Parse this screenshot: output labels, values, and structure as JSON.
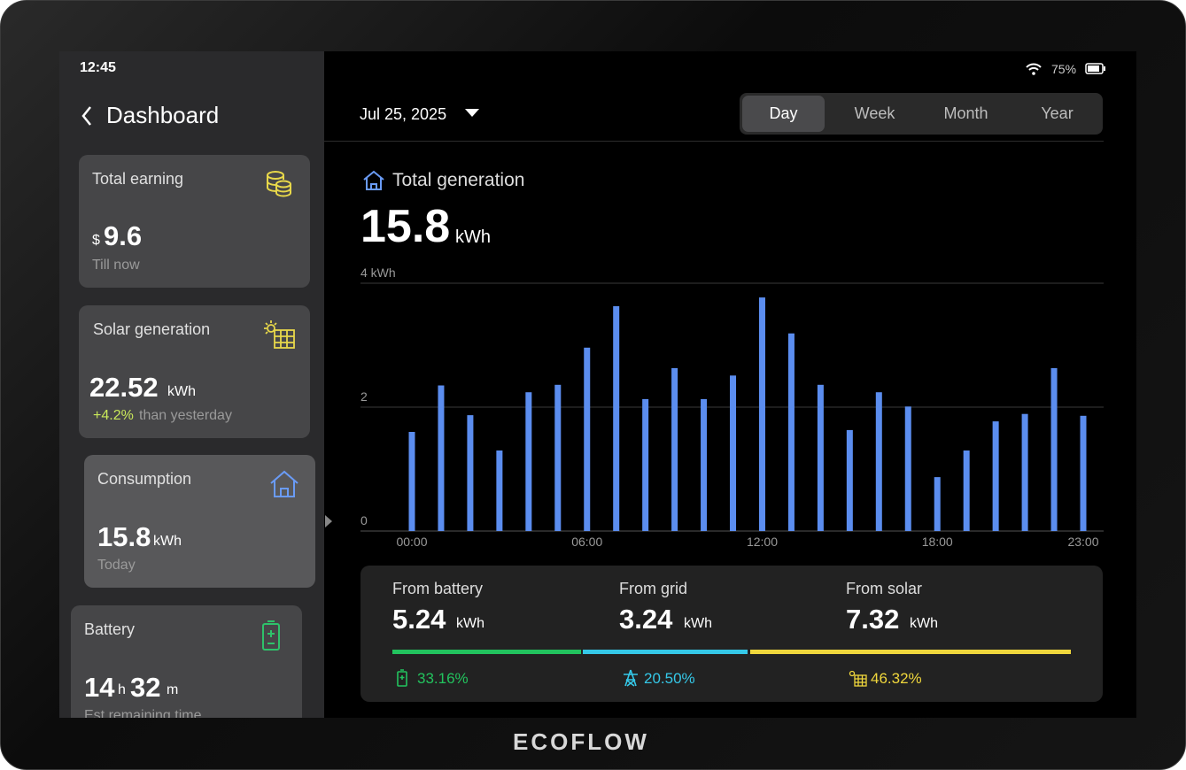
{
  "status": {
    "time": "12:45",
    "battery": "75%"
  },
  "sidebar": {
    "back": "Dashboard",
    "cards": [
      {
        "title": "Total earning",
        "unit": "$",
        "value": "9.6",
        "note": "Till now"
      },
      {
        "title": "Solar generation",
        "value": "22.52",
        "unit": "kWh",
        "change": "+4.2%",
        "note": "than yesterday"
      },
      {
        "title": "Consumption",
        "value": "15.8",
        "unit": "kWh",
        "note": "Today"
      },
      {
        "title": "Battery",
        "hours": "14",
        "hours_unit": "h",
        "minutes": "32",
        "minutes_unit": "m",
        "note": "Est remaining time"
      }
    ]
  },
  "main": {
    "date": "Jul 25, 2025",
    "tabs": [
      "Day",
      "Week",
      "Month",
      "Year"
    ],
    "selected_tab": "Day",
    "heading": "Total generation",
    "total": "15.8",
    "total_unit": "kWh",
    "breakdown": [
      {
        "label": "From battery",
        "value": "5.24",
        "unit": "kWh",
        "share": "33.16%"
      },
      {
        "label": "From grid",
        "value": "3.24",
        "unit": "kWh",
        "share": "20.50%"
      },
      {
        "label": "From solar",
        "value": "7.32",
        "unit": "kWh",
        "share": "46.32%"
      }
    ]
  },
  "brand": "ECOFLOW",
  "chart_data": {
    "type": "bar",
    "categories": [
      "00:00",
      null,
      null,
      null,
      null,
      null,
      "06:00",
      null,
      null,
      null,
      null,
      null,
      "12:00",
      null,
      null,
      null,
      null,
      null,
      "18:00",
      null,
      null,
      null,
      null,
      "23:00"
    ],
    "values": [
      1.6,
      2.35,
      1.87,
      1.3,
      2.24,
      2.36,
      2.96,
      3.63,
      2.13,
      2.63,
      2.13,
      2.51,
      3.77,
      3.19,
      2.36,
      1.63,
      2.24,
      2.01,
      0.87,
      1.3,
      1.77,
      1.89,
      2.63,
      1.86
    ],
    "color": "#5b8def",
    "ylim": [
      0,
      4
    ],
    "yticks": [
      0,
      2,
      {
        "value": 4,
        "label": "4 kWh"
      }
    ],
    "grid": true
  }
}
